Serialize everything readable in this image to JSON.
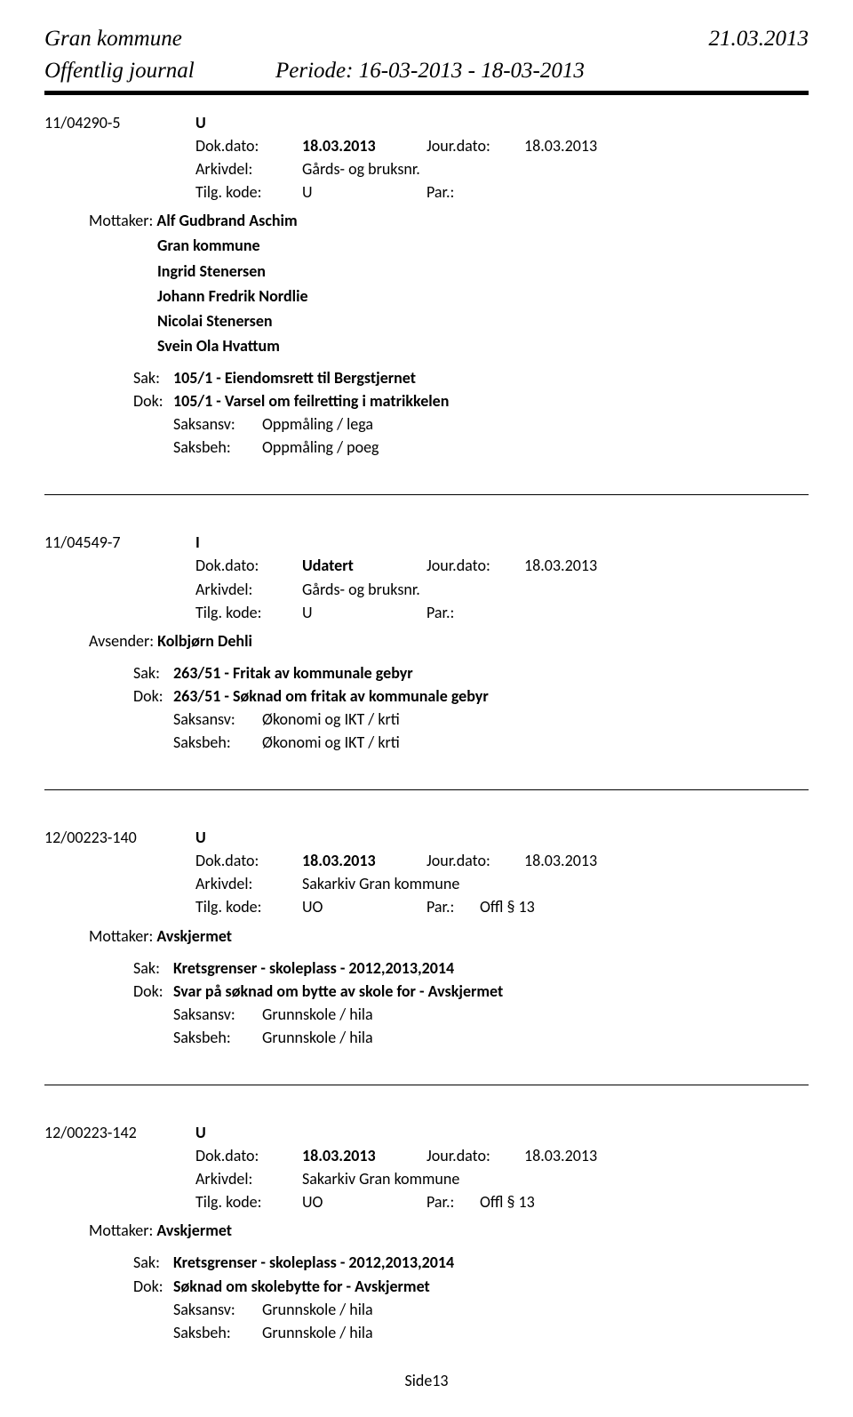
{
  "header": {
    "org": "Gran kommune",
    "date": "21.03.2013",
    "journal": "Offentlig journal",
    "period": "Periode: 16-03-2013 - 18-03-2013"
  },
  "entries": [
    {
      "caseNo": "11/04290-5",
      "dir": "U",
      "dokDatoLabel": "Dok.dato:",
      "dokDato": "18.03.2013",
      "jourDatoLabel": "Jour.dato:",
      "jourDato": "18.03.2013",
      "arkivdelLabel": "Arkivdel:",
      "arkivdel": "Gårds- og bruksnr.",
      "tilgLabel": "Tilg. kode:",
      "tilg": "U",
      "parLabel": "Par.:",
      "par": "",
      "partyLabel": "Mottaker:",
      "parties": [
        "Alf Gudbrand Aschim",
        "Gran kommune",
        "Ingrid Stenersen",
        "Johann Fredrik Nordlie",
        "Nicolai Stenersen",
        "Svein Ola Hvattum"
      ],
      "sakLabel": "Sak:",
      "sak": "105/1 - Eiendomsrett til Bergstjernet",
      "dokLabel": "Dok:",
      "dok": "105/1 - Varsel om feilretting i matrikkelen",
      "saksansvLabel": "Saksansv:",
      "saksansv": "Oppmåling / lega",
      "saksbehLabel": "Saksbeh:",
      "saksbeh": "Oppmåling / poeg"
    },
    {
      "caseNo": "11/04549-7",
      "dir": "I",
      "dokDatoLabel": "Dok.dato:",
      "dokDato": "Udatert",
      "jourDatoLabel": "Jour.dato:",
      "jourDato": "18.03.2013",
      "arkivdelLabel": "Arkivdel:",
      "arkivdel": "Gårds- og bruksnr.",
      "tilgLabel": "Tilg. kode:",
      "tilg": "U",
      "parLabel": "Par.:",
      "par": "",
      "partyLabel": "Avsender:",
      "parties": [
        "Kolbjørn Dehli"
      ],
      "sakLabel": "Sak:",
      "sak": "263/51 - Fritak av kommunale gebyr",
      "dokLabel": "Dok:",
      "dok": "263/51 - Søknad om fritak av kommunale gebyr",
      "saksansvLabel": "Saksansv:",
      "saksansv": "Økonomi og IKT / krti",
      "saksbehLabel": "Saksbeh:",
      "saksbeh": "Økonomi og IKT / krti"
    },
    {
      "caseNo": "12/00223-140",
      "dir": "U",
      "dokDatoLabel": "Dok.dato:",
      "dokDato": "18.03.2013",
      "jourDatoLabel": "Jour.dato:",
      "jourDato": "18.03.2013",
      "arkivdelLabel": "Arkivdel:",
      "arkivdel": "Sakarkiv Gran kommune",
      "tilgLabel": "Tilg. kode:",
      "tilg": "UO",
      "parLabel": "Par.:",
      "par": "Offl § 13",
      "partyLabel": "Mottaker:",
      "parties": [
        "Avskjermet"
      ],
      "sakLabel": "Sak:",
      "sak": "Kretsgrenser - skoleplass - 2012,2013,2014",
      "dokLabel": "Dok:",
      "dok": "Svar på søknad om bytte av skole for     - Avskjermet",
      "saksansvLabel": "Saksansv:",
      "saksansv": "Grunnskole / hila",
      "saksbehLabel": "Saksbeh:",
      "saksbeh": "Grunnskole / hila"
    },
    {
      "caseNo": "12/00223-142",
      "dir": "U",
      "dokDatoLabel": "Dok.dato:",
      "dokDato": "18.03.2013",
      "jourDatoLabel": "Jour.dato:",
      "jourDato": "18.03.2013",
      "arkivdelLabel": "Arkivdel:",
      "arkivdel": "Sakarkiv Gran kommune",
      "tilgLabel": "Tilg. kode:",
      "tilg": "UO",
      "parLabel": "Par.:",
      "par": "Offl § 13",
      "partyLabel": "Mottaker:",
      "parties": [
        "Avskjermet"
      ],
      "sakLabel": "Sak:",
      "sak": "Kretsgrenser - skoleplass - 2012,2013,2014",
      "dokLabel": "Dok:",
      "dok": "Søknad om skolebytte for     - Avskjermet",
      "saksansvLabel": "Saksansv:",
      "saksansv": "Grunnskole / hila",
      "saksbehLabel": "Saksbeh:",
      "saksbeh": "Grunnskole / hila"
    }
  ],
  "footer": "Side13"
}
